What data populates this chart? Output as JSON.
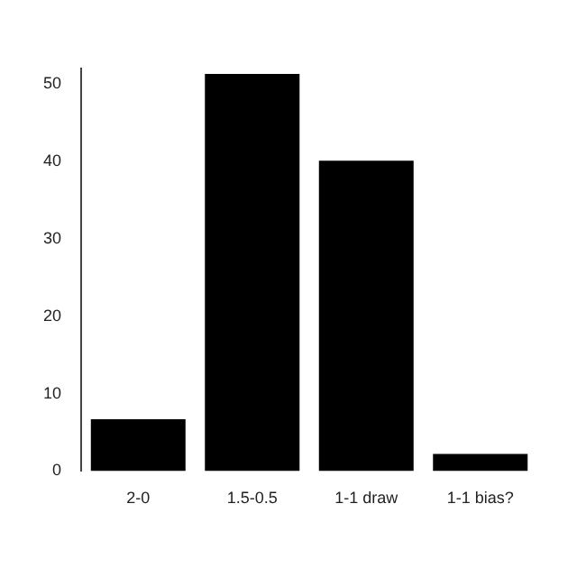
{
  "chart_data": {
    "type": "bar",
    "categories": [
      "2-0",
      "1.5-0.5",
      "1-1 draw",
      "1-1 bias?"
    ],
    "values": [
      6.7,
      51.3,
      40.1,
      2.2
    ],
    "color": "#000000",
    "ylim": [
      0,
      52
    ],
    "yticks": [
      0,
      10,
      20,
      30,
      40,
      50
    ],
    "grid": false,
    "legend": false
  }
}
